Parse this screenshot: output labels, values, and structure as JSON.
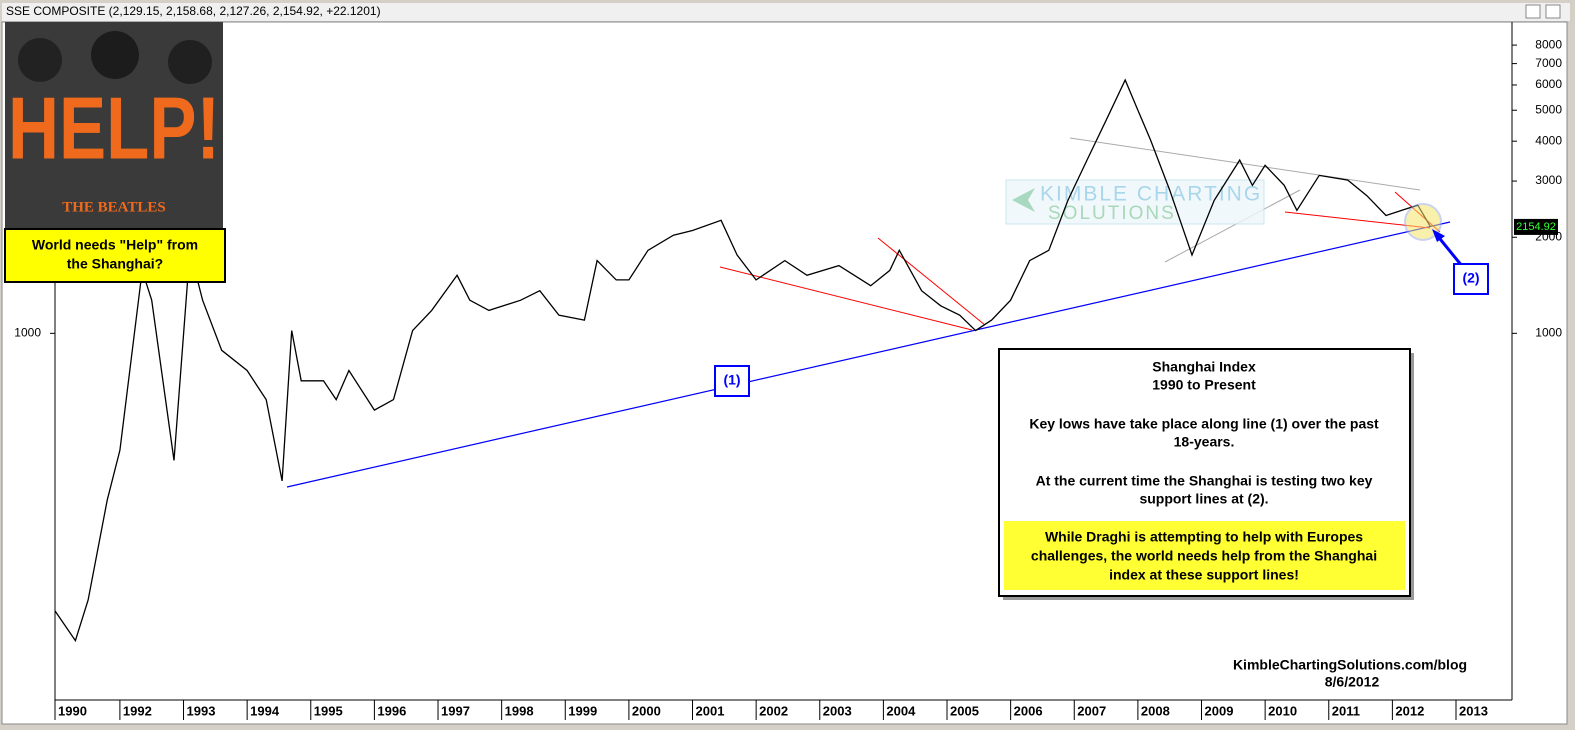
{
  "chart_data": {
    "type": "line",
    "title": "SSE COMPOSITE (2,129.15, 2,158.68, 2,127.26, 2,154.92, +22.1201)",
    "x": [
      1990.98,
      1991.3,
      1991.5,
      1991.8,
      1992.0,
      1992.35,
      1992.5,
      1992.85,
      1993.1,
      1993.3,
      1993.6,
      1994.0,
      1994.3,
      1994.55,
      1994.7,
      1994.85,
      1995.2,
      1995.4,
      1995.6,
      1996.0,
      1996.3,
      1996.6,
      1996.9,
      1997.3,
      1997.5,
      1997.8,
      1998.3,
      1998.6,
      1998.9,
      1999.3,
      1999.5,
      1999.8,
      2000.0,
      2000.3,
      2000.7,
      2001.0,
      2001.45,
      2001.7,
      2002.0,
      2002.45,
      2002.8,
      2003.3,
      2003.8,
      2004.1,
      2004.25,
      2004.6,
      2004.9,
      2005.2,
      2005.45,
      2005.7,
      2006.0,
      2006.3,
      2006.6,
      2006.9,
      2007.2,
      2007.5,
      2007.8,
      2008.0,
      2008.2,
      2008.5,
      2008.85,
      2009.2,
      2009.6,
      2009.8,
      2010.0,
      2010.3,
      2010.5,
      2010.85,
      2011.3,
      2011.6,
      2011.9,
      2012.15,
      2012.4,
      2012.6
    ],
    "values": [
      135,
      109,
      146,
      300,
      430,
      1575,
      1270,
      400,
      1820,
      1270,
      885,
      765,
      620,
      345,
      1020,
      710,
      710,
      620,
      765,
      575,
      620,
      1020,
      1180,
      1520,
      1270,
      1180,
      1270,
      1360,
      1140,
      1100,
      1690,
      1470,
      1470,
      1820,
      2030,
      2100,
      2260,
      1760,
      1470,
      1690,
      1520,
      1630,
      1410,
      1575,
      1820,
      1360,
      1220,
      1140,
      1020,
      1100,
      1270,
      1690,
      1820,
      2610,
      3490,
      4650,
      6220,
      5000,
      4030,
      2810,
      1760,
      2610,
      3490,
      2910,
      3360,
      2910,
      2430,
      3125,
      3020,
      2700,
      2340,
      2430,
      2520,
      2154.92
    ],
    "color": "#000000",
    "log_y": true,
    "xlim": [
      1990.98,
      2013.88
    ],
    "xticks": [
      1990,
      1992,
      1993,
      1994,
      1995,
      1996,
      1997,
      1998,
      1999,
      2000,
      2001,
      2002,
      2003,
      2004,
      2005,
      2006,
      2007,
      2008,
      2009,
      2010,
      2011,
      2012,
      2013
    ],
    "ylim": [
      71,
      9450
    ],
    "yticks": [
      1000,
      2000,
      3000,
      4000,
      5000,
      6000,
      7000,
      8000
    ],
    "annotations": {
      "album_title": "HELP!",
      "album_band": "THE BEATLES",
      "callout": [
        "World needs \"Help\" from",
        "the Shanghai?"
      ],
      "label_1": "(1)",
      "label_2": "(2)",
      "watermark": [
        "KIMBLE CHARTING",
        "SOLUTIONS"
      ],
      "box_title": [
        "Shanghai Index",
        "1990 to Present"
      ],
      "box_text_1": [
        "Key lows have take place along line (1) over the past",
        "18-years."
      ],
      "box_text_2": [
        "At the current time the Shanghai is testing two key",
        "support lines at (2)."
      ],
      "box_highlight": [
        "While Draghi is attempting to help with Europes",
        "challenges, the world needs help from the Shanghai",
        "index at these support lines!"
      ],
      "source": "KimbleChartingSolutions.com/blog",
      "date": "8/6/2012"
    }
  }
}
